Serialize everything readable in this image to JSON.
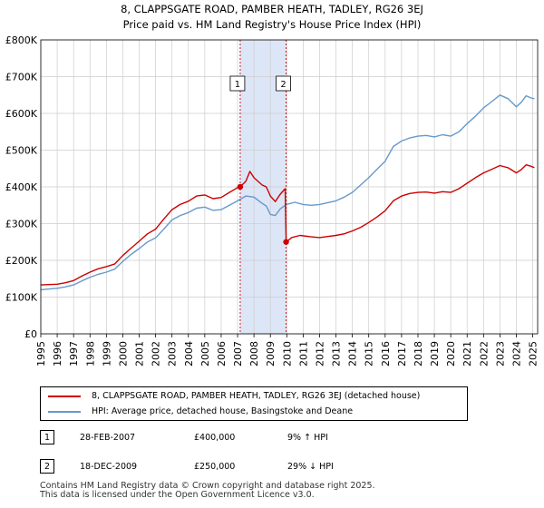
{
  "chart_data": {
    "type": "line",
    "title": "8, CLAPPSGATE ROAD, PAMBER HEATH, TADLEY, RG26 3EJ",
    "subtitle": "Price paid vs. HM Land Registry's House Price Index (HPI)",
    "xlim": [
      1995,
      2025.3
    ],
    "ylim": [
      0,
      800000
    ],
    "y_ticks": [
      {
        "value": 0,
        "label": "£0"
      },
      {
        "value": 100000,
        "label": "£100K"
      },
      {
        "value": 200000,
        "label": "£200K"
      },
      {
        "value": 300000,
        "label": "£300K"
      },
      {
        "value": 400000,
        "label": "£400K"
      },
      {
        "value": 500000,
        "label": "£500K"
      },
      {
        "value": 600000,
        "label": "£600K"
      },
      {
        "value": 700000,
        "label": "£700K"
      },
      {
        "value": 800000,
        "label": "£800K"
      }
    ],
    "x_ticks": [
      "1995",
      "1996",
      "1997",
      "1998",
      "1999",
      "2000",
      "2001",
      "2002",
      "2003",
      "2004",
      "2005",
      "2006",
      "2007",
      "2008",
      "2009",
      "2010",
      "2011",
      "2012",
      "2013",
      "2014",
      "2015",
      "2016",
      "2017",
      "2018",
      "2019",
      "2020",
      "2021",
      "2022",
      "2023",
      "2024",
      "2025"
    ],
    "shaded_region": [
      2007.16,
      2009.96
    ],
    "series": [
      {
        "name": "8, CLAPPSGATE ROAD, PAMBER HEATH, TADLEY, RG26 3EJ (detached house)",
        "color": "#cc0000",
        "points": [
          [
            1995.0,
            133000
          ],
          [
            1995.5,
            134000
          ],
          [
            1996.0,
            135000
          ],
          [
            1996.5,
            139000
          ],
          [
            1997.0,
            145000
          ],
          [
            1997.5,
            157000
          ],
          [
            1998.0,
            168000
          ],
          [
            1998.5,
            177000
          ],
          [
            1999.0,
            183000
          ],
          [
            1999.5,
            190000
          ],
          [
            2000.0,
            213000
          ],
          [
            2000.5,
            233000
          ],
          [
            2001.0,
            252000
          ],
          [
            2001.5,
            272000
          ],
          [
            2002.0,
            285000
          ],
          [
            2002.5,
            312000
          ],
          [
            2003.0,
            338000
          ],
          [
            2003.5,
            352000
          ],
          [
            2004.0,
            361000
          ],
          [
            2004.5,
            375000
          ],
          [
            2005.0,
            378000
          ],
          [
            2005.5,
            368000
          ],
          [
            2006.0,
            371000
          ],
          [
            2006.5,
            385000
          ],
          [
            2007.0,
            398000
          ],
          [
            2007.16,
            400000
          ],
          [
            2007.5,
            415000
          ],
          [
            2007.75,
            442000
          ],
          [
            2008.0,
            425000
          ],
          [
            2008.5,
            405000
          ],
          [
            2008.75,
            400000
          ],
          [
            2009.0,
            375000
          ],
          [
            2009.3,
            360000
          ],
          [
            2009.6,
            380000
          ],
          [
            2009.9,
            395000
          ],
          [
            2009.96,
            250000
          ],
          [
            2010.3,
            262000
          ],
          [
            2010.8,
            268000
          ],
          [
            2011.5,
            264000
          ],
          [
            2012.0,
            262000
          ],
          [
            2012.5,
            265000
          ],
          [
            2013.0,
            268000
          ],
          [
            2013.5,
            272000
          ],
          [
            2014.0,
            280000
          ],
          [
            2014.5,
            290000
          ],
          [
            2015.0,
            303000
          ],
          [
            2015.5,
            318000
          ],
          [
            2016.0,
            335000
          ],
          [
            2016.5,
            362000
          ],
          [
            2017.0,
            375000
          ],
          [
            2017.5,
            382000
          ],
          [
            2018.0,
            385000
          ],
          [
            2018.5,
            386000
          ],
          [
            2019.0,
            383000
          ],
          [
            2019.5,
            387000
          ],
          [
            2020.0,
            385000
          ],
          [
            2020.5,
            395000
          ],
          [
            2021.0,
            410000
          ],
          [
            2021.5,
            425000
          ],
          [
            2022.0,
            438000
          ],
          [
            2022.5,
            448000
          ],
          [
            2023.0,
            458000
          ],
          [
            2023.5,
            452000
          ],
          [
            2024.0,
            438000
          ],
          [
            2024.3,
            447000
          ],
          [
            2024.6,
            460000
          ],
          [
            2024.9,
            456000
          ],
          [
            2025.1,
            452000
          ]
        ]
      },
      {
        "name": "HPI: Average price, detached house, Basingstoke and Deane",
        "color": "#6699cc",
        "points": [
          [
            1995.0,
            120000
          ],
          [
            1995.5,
            122000
          ],
          [
            1996.0,
            124000
          ],
          [
            1996.5,
            128000
          ],
          [
            1997.0,
            133000
          ],
          [
            1997.5,
            144000
          ],
          [
            1998.0,
            154000
          ],
          [
            1998.5,
            162000
          ],
          [
            1999.0,
            168000
          ],
          [
            1999.5,
            176000
          ],
          [
            2000.0,
            197000
          ],
          [
            2000.5,
            216000
          ],
          [
            2001.0,
            232000
          ],
          [
            2001.5,
            250000
          ],
          [
            2002.0,
            261000
          ],
          [
            2002.5,
            285000
          ],
          [
            2003.0,
            310000
          ],
          [
            2003.5,
            322000
          ],
          [
            2004.0,
            330000
          ],
          [
            2004.5,
            342000
          ],
          [
            2005.0,
            345000
          ],
          [
            2005.5,
            336000
          ],
          [
            2006.0,
            338000
          ],
          [
            2006.5,
            350000
          ],
          [
            2007.0,
            362000
          ],
          [
            2007.5,
            375000
          ],
          [
            2008.0,
            372000
          ],
          [
            2008.5,
            355000
          ],
          [
            2008.75,
            348000
          ],
          [
            2009.0,
            325000
          ],
          [
            2009.3,
            322000
          ],
          [
            2009.6,
            340000
          ],
          [
            2009.96,
            352000
          ],
          [
            2010.5,
            358000
          ],
          [
            2011.0,
            352000
          ],
          [
            2011.5,
            350000
          ],
          [
            2012.0,
            352000
          ],
          [
            2012.5,
            357000
          ],
          [
            2013.0,
            362000
          ],
          [
            2013.5,
            372000
          ],
          [
            2014.0,
            385000
          ],
          [
            2014.5,
            405000
          ],
          [
            2015.0,
            425000
          ],
          [
            2015.5,
            448000
          ],
          [
            2016.0,
            470000
          ],
          [
            2016.5,
            510000
          ],
          [
            2017.0,
            525000
          ],
          [
            2017.5,
            533000
          ],
          [
            2018.0,
            538000
          ],
          [
            2018.5,
            540000
          ],
          [
            2019.0,
            536000
          ],
          [
            2019.5,
            542000
          ],
          [
            2020.0,
            538000
          ],
          [
            2020.5,
            550000
          ],
          [
            2021.0,
            572000
          ],
          [
            2021.5,
            592000
          ],
          [
            2022.0,
            615000
          ],
          [
            2022.5,
            632000
          ],
          [
            2023.0,
            650000
          ],
          [
            2023.5,
            640000
          ],
          [
            2024.0,
            618000
          ],
          [
            2024.3,
            630000
          ],
          [
            2024.6,
            648000
          ],
          [
            2024.9,
            642000
          ],
          [
            2025.1,
            640000
          ]
        ]
      }
    ],
    "sales": [
      {
        "num": "1",
        "x": 2007.16,
        "price_value": 400000,
        "date": "28-FEB-2007",
        "price": "£400,000",
        "hpi": "9% ↑ HPI"
      },
      {
        "num": "2",
        "x": 2009.96,
        "price_value": 250000,
        "date": "18-DEC-2009",
        "price": "£250,000",
        "hpi": "29% ↓ HPI"
      }
    ],
    "colors": {
      "property": "#cc0000",
      "hpi": "#6699cc",
      "shade": "#dde6f7",
      "grid": "#cccccc",
      "marker_line": "#cc0000"
    }
  },
  "legend": {
    "property_label": "8, CLAPPSGATE ROAD, PAMBER HEATH, TADLEY, RG26 3EJ (detached house)",
    "hpi_label": "HPI: Average price, detached house, Basingstoke and Deane"
  },
  "footer": {
    "line1": "Contains HM Land Registry data © Crown copyright and database right 2025.",
    "line2": "This data is licensed under the Open Government Licence v3.0."
  }
}
